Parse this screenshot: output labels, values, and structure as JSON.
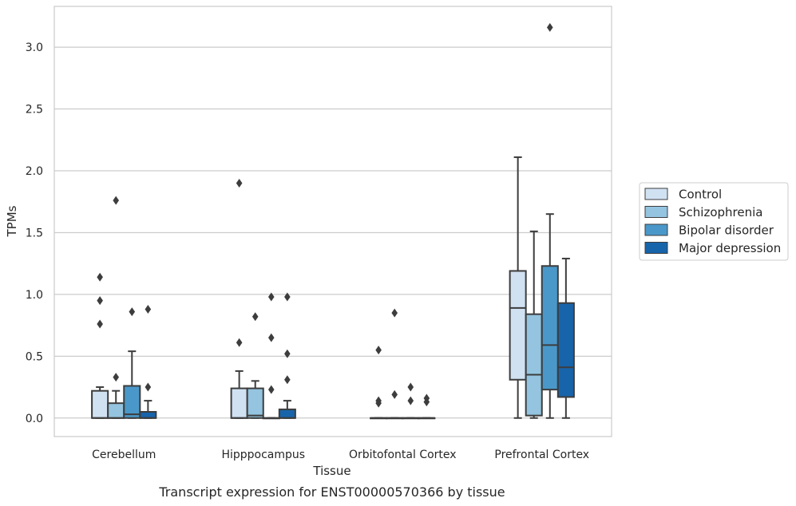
{
  "caption": "Transcript expression for ENST00000570366 by tissue",
  "chart_data": {
    "type": "boxplot",
    "title": "",
    "xlabel": "Tissue",
    "ylabel": "TPMs",
    "ylim": [
      -0.15,
      3.33
    ],
    "yticks": [
      "0.0",
      "0.5",
      "1.0",
      "1.5",
      "2.0",
      "2.5",
      "3.0"
    ],
    "grid": "horizontal",
    "legend_position": "right",
    "categories": [
      "Cerebellum",
      "Hipppocampus",
      "Orbitofontal Cortex",
      "Prefrontal Cortex"
    ],
    "series": [
      {
        "name": "Control",
        "color": "#d0e1f2",
        "boxes": [
          {
            "q1": 0,
            "median": 0,
            "q3": 0.22,
            "whisker_low": 0,
            "whisker_high": 0.25,
            "outliers": [
              0.76,
              0.95,
              1.14
            ]
          },
          {
            "q1": 0,
            "median": 0,
            "q3": 0.24,
            "whisker_low": 0,
            "whisker_high": 0.38,
            "outliers": [
              0.61,
              1.9
            ]
          },
          {
            "q1": 0,
            "median": 0,
            "q3": 0,
            "whisker_low": 0,
            "whisker_high": 0,
            "outliers": [
              0.12,
              0.14,
              0.55
            ]
          },
          {
            "q1": 0.31,
            "median": 0.89,
            "q3": 1.19,
            "whisker_low": 0,
            "whisker_high": 2.11,
            "outliers": []
          }
        ]
      },
      {
        "name": "Schizophrenia",
        "color": "#94c4df",
        "boxes": [
          {
            "q1": 0,
            "median": 0,
            "q3": 0.12,
            "whisker_low": 0,
            "whisker_high": 0.22,
            "outliers": [
              0.33,
              1.76
            ]
          },
          {
            "q1": 0,
            "median": 0.02,
            "q3": 0.24,
            "whisker_low": 0,
            "whisker_high": 0.3,
            "outliers": [
              0.82
            ]
          },
          {
            "q1": 0,
            "median": 0,
            "q3": 0,
            "whisker_low": 0,
            "whisker_high": 0,
            "outliers": [
              0.19,
              0.85
            ]
          },
          {
            "q1": 0.02,
            "median": 0.35,
            "q3": 0.84,
            "whisker_low": 0,
            "whisker_high": 1.51,
            "outliers": []
          }
        ]
      },
      {
        "name": "Bipolar disorder",
        "color": "#4a98c9",
        "boxes": [
          {
            "q1": 0,
            "median": 0.03,
            "q3": 0.26,
            "whisker_low": 0,
            "whisker_high": 0.54,
            "outliers": [
              0.86
            ]
          },
          {
            "q1": 0,
            "median": 0,
            "q3": 0,
            "whisker_low": 0,
            "whisker_high": 0,
            "outliers": [
              0.23,
              0.65,
              0.98
            ]
          },
          {
            "q1": 0,
            "median": 0,
            "q3": 0,
            "whisker_low": 0,
            "whisker_high": 0,
            "outliers": [
              0.14,
              0.25
            ]
          },
          {
            "q1": 0.23,
            "median": 0.59,
            "q3": 1.23,
            "whisker_low": 0,
            "whisker_high": 1.65,
            "outliers": [
              3.16
            ]
          }
        ]
      },
      {
        "name": "Major depression",
        "color": "#1764ab",
        "boxes": [
          {
            "q1": 0,
            "median": 0,
            "q3": 0.05,
            "whisker_low": 0,
            "whisker_high": 0.14,
            "outliers": [
              0.25,
              0.88
            ]
          },
          {
            "q1": 0,
            "median": 0,
            "q3": 0.07,
            "whisker_low": 0,
            "whisker_high": 0.14,
            "outliers": [
              0.31,
              0.52,
              0.98
            ]
          },
          {
            "q1": 0,
            "median": 0,
            "q3": 0,
            "whisker_low": 0,
            "whisker_high": 0,
            "outliers": [
              0.13,
              0.16
            ]
          },
          {
            "q1": 0.17,
            "median": 0.41,
            "q3": 0.93,
            "whisker_low": 0,
            "whisker_high": 1.29,
            "outliers": []
          }
        ]
      }
    ]
  }
}
